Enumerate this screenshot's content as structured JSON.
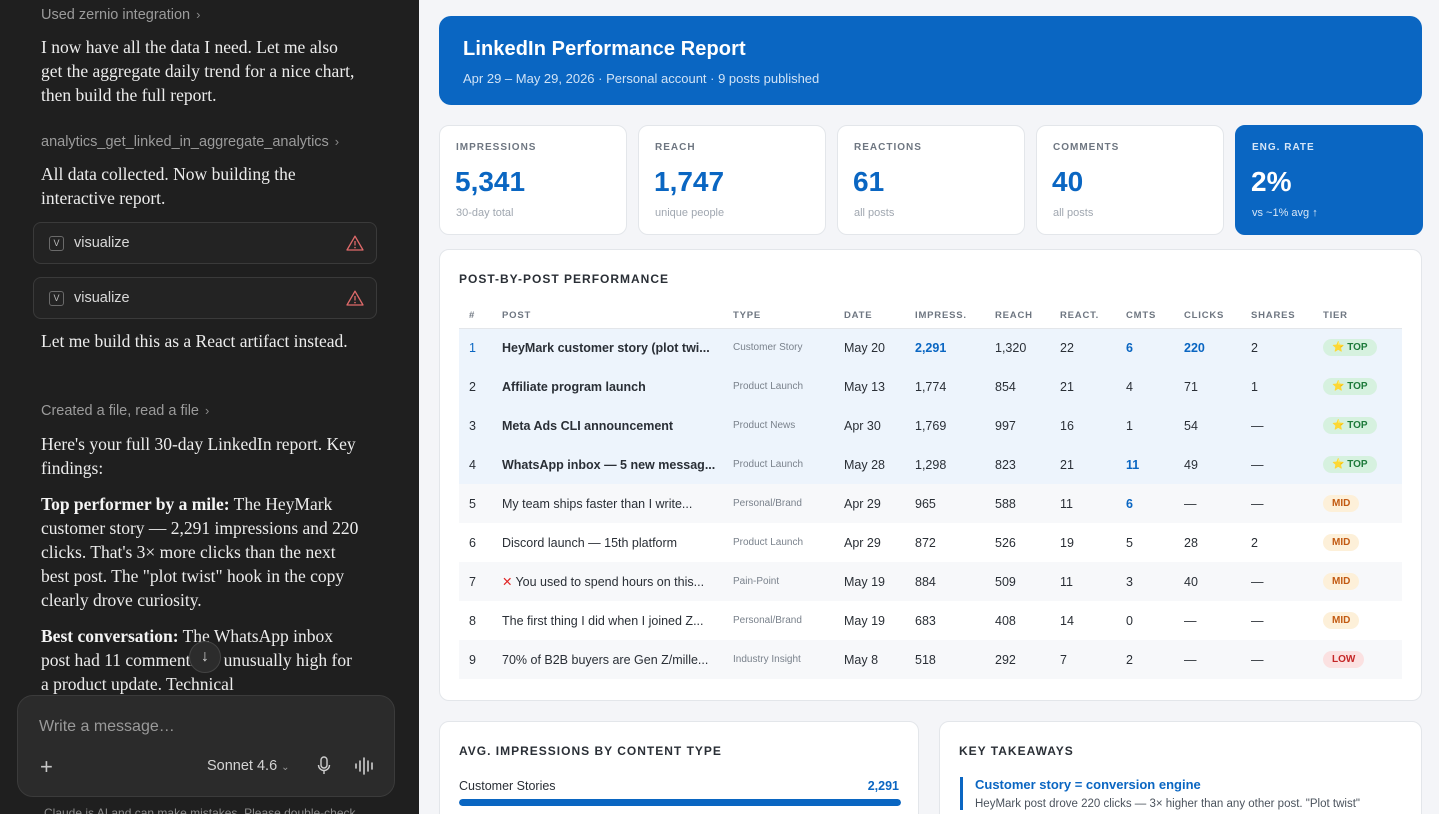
{
  "chat": {
    "tool_link_1": "Used zernio integration",
    "para_1": "I now have all the data I need. Let me also get the aggregate daily trend for a nice chart, then build the full report.",
    "tool_link_2": "analytics_get_linked_in_aggregate_analytics",
    "para_2": "All data collected. Now building the interactive report.",
    "tool_cards": [
      {
        "badge": "V",
        "name": "visualize"
      },
      {
        "badge": "V",
        "name": "visualize"
      }
    ],
    "para_3": "Let me build this as a React artifact instead.",
    "tool_link_3": "Created a file, read a file",
    "para_4": "Here's your full 30-day LinkedIn report. Key findings:",
    "finding_1_lead": "Top performer by a mile:",
    "finding_1_body": " The HeyMark customer story — 2,291 impressions and 220 clicks. That's 3× more clicks than the next best post. The \"plot twist\" hook in the copy clearly drove curiosity.",
    "finding_2_lead": "Best conversation:",
    "finding_2_body": " The WhatsApp inbox post had 11 comments — unusually high for a product update. Technical",
    "composer_placeholder": "Write a message…",
    "model_name": "Sonnet 4.6",
    "disclaimer": "Claude is AI and can make mistakes. Please double-check"
  },
  "report": {
    "title": "LinkedIn Performance Report",
    "subtitle": "Apr 29 – May 29, 2026 · Personal account · 9 posts published",
    "kpis": [
      {
        "label": "IMPRESSIONS",
        "value": "5,341",
        "sub": "30-day total"
      },
      {
        "label": "REACH",
        "value": "1,747",
        "sub": "unique people"
      },
      {
        "label": "REACTIONS",
        "value": "61",
        "sub": "all posts"
      },
      {
        "label": "COMMENTS",
        "value": "40",
        "sub": "all posts"
      },
      {
        "label": "ENG. RATE",
        "value": "2%",
        "sub": "vs ~1% avg ↑"
      }
    ],
    "table_title": "POST-BY-POST PERFORMANCE",
    "columns": [
      "#",
      "POST",
      "TYPE",
      "DATE",
      "IMPRESS.",
      "REACH",
      "REACT.",
      "CMTS",
      "CLICKS",
      "SHARES",
      "TIER"
    ],
    "rows": [
      {
        "n": "1",
        "post": "HeyMark customer story (plot twi...",
        "type": "Customer Story",
        "date": "May 20",
        "impr": "2,291",
        "reach": "1,320",
        "react": "22",
        "cmts": "6",
        "clicks": "220",
        "shares": "2",
        "tier": "⭐ TOP"
      },
      {
        "n": "2",
        "post": "Affiliate program launch",
        "type": "Product Launch",
        "date": "May 13",
        "impr": "1,774",
        "reach": "854",
        "react": "21",
        "cmts": "4",
        "clicks": "71",
        "shares": "1",
        "tier": "⭐ TOP"
      },
      {
        "n": "3",
        "post": "Meta Ads CLI announcement",
        "type": "Product News",
        "date": "Apr 30",
        "impr": "1,769",
        "reach": "997",
        "react": "16",
        "cmts": "1",
        "clicks": "54",
        "shares": "—",
        "tier": "⭐ TOP"
      },
      {
        "n": "4",
        "post": "WhatsApp inbox — 5 new messag...",
        "type": "Product Launch",
        "date": "May 28",
        "impr": "1,298",
        "reach": "823",
        "react": "21",
        "cmts": "11",
        "clicks": "49",
        "shares": "—",
        "tier": "⭐ TOP"
      },
      {
        "n": "5",
        "post": "My team ships faster than I write...",
        "type": "Personal/Brand",
        "date": "Apr 29",
        "impr": "965",
        "reach": "588",
        "react": "11",
        "cmts": "6",
        "clicks": "—",
        "shares": "—",
        "tier": "MID"
      },
      {
        "n": "6",
        "post": "Discord launch — 15th platform",
        "type": "Product Launch",
        "date": "Apr 29",
        "impr": "872",
        "reach": "526",
        "react": "19",
        "cmts": "5",
        "clicks": "28",
        "shares": "2",
        "tier": "MID"
      },
      {
        "n": "7",
        "post": "You used to spend hours on this...",
        "type": "Pain-Point",
        "date": "May 19",
        "impr": "884",
        "reach": "509",
        "react": "11",
        "cmts": "3",
        "clicks": "40",
        "shares": "—",
        "tier": "MID"
      },
      {
        "n": "8",
        "post": "The first thing I did when I joined Z...",
        "type": "Personal/Brand",
        "date": "May 19",
        "impr": "683",
        "reach": "408",
        "react": "14",
        "cmts": "0",
        "clicks": "—",
        "shares": "—",
        "tier": "MID"
      },
      {
        "n": "9",
        "post": "70% of B2B buyers are Gen Z/mille...",
        "type": "Industry Insight",
        "date": "May 8",
        "impr": "518",
        "reach": "292",
        "react": "7",
        "cmts": "2",
        "clicks": "—",
        "shares": "—",
        "tier": "LOW"
      }
    ],
    "avg_title": "AVG. IMPRESSIONS BY CONTENT TYPE",
    "avg_rows": [
      {
        "label": "Customer Stories",
        "value": "2,291",
        "fraction": 1.0
      }
    ],
    "takeaways_title": "KEY TAKEAWAYS",
    "takeaways": [
      {
        "title": "Customer story = conversion engine",
        "body": "HeyMark post drove 220 clicks — 3× higher than any other post. \"Plot twist\""
      }
    ]
  },
  "colors": {
    "brand": "#0a66c2",
    "chat_bg": "#1f1f1f",
    "tier_top": "#1e7a3b",
    "tier_mid": "#c25a12",
    "tier_low": "#c42626"
  }
}
